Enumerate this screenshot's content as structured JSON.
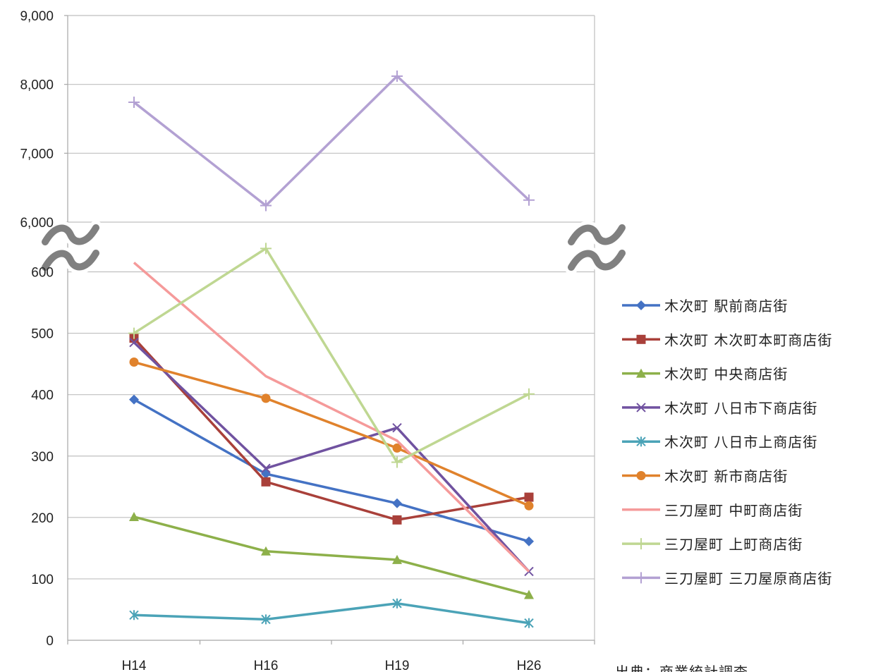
{
  "chart_data": {
    "type": "line",
    "categories": [
      "H14",
      "H16",
      "H19",
      "H26"
    ],
    "y_axis_upper": {
      "ticks": [
        "9,000",
        "8,000",
        "7,000",
        "6,000"
      ],
      "ylim": [
        6000,
        9000
      ]
    },
    "y_axis_lower": {
      "ticks": [
        "600",
        "500",
        "400",
        "300",
        "200",
        "100",
        "0"
      ],
      "ylim": [
        0,
        650
      ]
    },
    "axis_break": true,
    "grid": true,
    "legend_position": "right",
    "series": [
      {
        "name": "木次町 駅前商店街",
        "values": [
          392,
          271,
          223,
          161
        ],
        "color": "#4472C4",
        "marker": "diamond",
        "axis": "lower"
      },
      {
        "name": "木次町 木次町本町商店街",
        "values": [
          492,
          258,
          196,
          233
        ],
        "color": "#A9403A",
        "marker": "square",
        "axis": "lower"
      },
      {
        "name": "木次町 中央商店街",
        "values": [
          201,
          145,
          131,
          74
        ],
        "color": "#8DB04A",
        "marker": "triangle",
        "axis": "lower"
      },
      {
        "name": "木次町 八日市下商店街",
        "values": [
          485,
          280,
          346,
          112
        ],
        "color": "#7052A0",
        "marker": "x",
        "axis": "lower"
      },
      {
        "name": "木次町 八日市上商店街",
        "values": [
          41,
          34,
          60,
          28
        ],
        "color": "#4BA3B7",
        "marker": "asterisk",
        "axis": "lower"
      },
      {
        "name": "木次町 新市商店街",
        "values": [
          453,
          394,
          313,
          219
        ],
        "color": "#E0822C",
        "marker": "circle",
        "axis": "lower"
      },
      {
        "name": "三刀屋町 中町商店街",
        "values": [
          615,
          430,
          325,
          112
        ],
        "color": "#F59A9A",
        "marker": "none",
        "axis": "lower"
      },
      {
        "name": "三刀屋町 上町商店街",
        "values": [
          500,
          638,
          290,
          401
        ],
        "color": "#BFD792",
        "marker": "plus",
        "axis": "lower"
      },
      {
        "name": "三刀屋町 三刀屋原商店街",
        "values": [
          7740,
          6240,
          8120,
          6320
        ],
        "color": "#B3A1D3",
        "marker": "plus",
        "axis": "upper"
      }
    ],
    "source_note": "出典：商業統計調査"
  }
}
